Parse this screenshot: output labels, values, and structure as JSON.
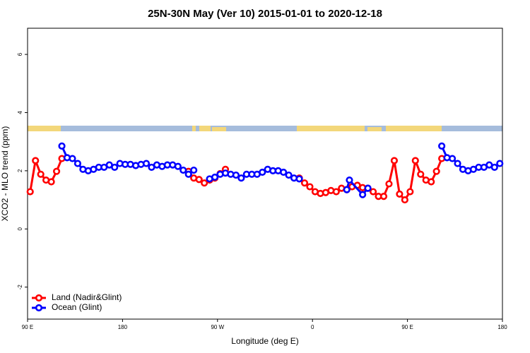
{
  "chart_data": {
    "type": "line",
    "title": "25N-30N May (Ver 10)   2015-01-01 to 2020-12-18",
    "x_label": "Longitude (deg E)",
    "y_label": "XCO2 - MLO trend (ppm)",
    "xlim": [
      90,
      540
    ],
    "ylim": [
      -3.1,
      6.9
    ],
    "xticks": [
      {
        "value": 90,
        "label": "90 E"
      },
      180,
      {
        "value": 270,
        "label": "90 W"
      },
      {
        "value": 360,
        "label": "0"
      },
      {
        "value": 450,
        "label": "90 E"
      },
      {
        "value": 540,
        "label": "180"
      }
    ],
    "yticks": [
      -2,
      0,
      2,
      4,
      6
    ],
    "legend": "bottomleft",
    "series": [
      {
        "name": "Land (Nadir&Glint)",
        "color": "#ff0000",
        "x": [
          92.5,
          97.5,
          102.5,
          107.5,
          112.5,
          117.5,
          122.5,
          180,
          242.5,
          247.5,
          252.5,
          257.5,
          262.5,
          267.5,
          272.5,
          277.5,
          310,
          347.5,
          352.5,
          357.5,
          362.5,
          367.5,
          372.5,
          377.5,
          382.5,
          387.5,
          392.5,
          397.5,
          402.5,
          407.5,
          412.5,
          417.5,
          422.5,
          427.5,
          432.5,
          437.5,
          442.5,
          447.5,
          452.5,
          457.5,
          462.5,
          467.5,
          472.5,
          477.5,
          482.5
        ],
        "values": [
          1.28,
          2.35,
          1.88,
          1.68,
          1.62,
          1.98,
          2.42,
          null,
          1.98,
          1.75,
          1.7,
          1.58,
          1.68,
          1.75,
          1.9,
          2.05,
          null,
          1.75,
          1.58,
          1.45,
          1.28,
          1.22,
          1.25,
          1.32,
          1.28,
          1.4,
          1.35,
          1.45,
          1.5,
          1.42,
          1.4,
          1.28,
          1.12,
          1.12,
          1.55,
          2.35,
          1.2,
          1.0,
          1.28,
          2.35,
          1.88,
          1.68,
          1.62,
          1.98,
          2.42
        ]
      },
      {
        "name": "Ocean (Glint)",
        "color": "#0000ff",
        "x": [
          122.5,
          127.5,
          132.5,
          137.5,
          142.5,
          147.5,
          152.5,
          157.5,
          162.5,
          167.5,
          172.5,
          177.5,
          182.5,
          187.5,
          192.5,
          197.5,
          202.5,
          207.5,
          212.5,
          217.5,
          222.5,
          227.5,
          232.5,
          237.5,
          242.5,
          247.5,
          255,
          262.5,
          267.5,
          272.5,
          277.5,
          282.5,
          287.5,
          292.5,
          297.5,
          302.5,
          307.5,
          312.5,
          317.5,
          322.5,
          327.5,
          332.5,
          337.5,
          342.5,
          347.5,
          370,
          392.5,
          395,
          407.5,
          412.5,
          450,
          482.5,
          487.5,
          492.5,
          497.5,
          502.5,
          507.5,
          512.5,
          517.5,
          522.5,
          527.5,
          532.5,
          537.5
        ],
        "values": [
          2.85,
          2.45,
          2.42,
          2.25,
          2.05,
          2.0,
          2.05,
          2.12,
          2.12,
          2.2,
          2.12,
          2.25,
          2.22,
          2.22,
          2.18,
          2.22,
          2.25,
          2.12,
          2.2,
          2.15,
          2.2,
          2.2,
          2.15,
          2.02,
          1.88,
          2.02,
          null,
          1.72,
          1.78,
          1.88,
          1.92,
          1.88,
          1.85,
          1.75,
          1.88,
          1.88,
          1.88,
          1.95,
          2.05,
          2.0,
          2.0,
          1.95,
          1.85,
          1.75,
          1.72,
          null,
          1.35,
          1.68,
          1.18,
          1.4,
          null,
          2.85,
          2.45,
          2.42,
          2.25,
          2.05,
          2.0,
          2.05,
          2.12,
          2.12,
          2.2,
          2.12,
          2.25
        ]
      }
    ]
  }
}
